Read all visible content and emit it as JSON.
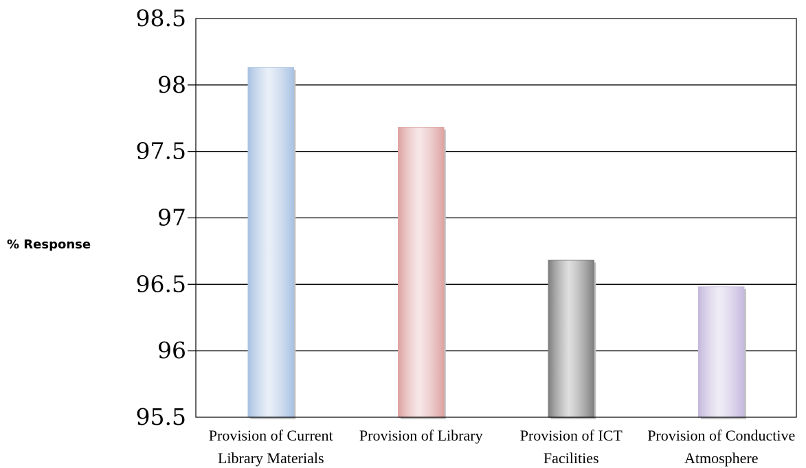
{
  "chart_data": {
    "type": "bar",
    "ylabel": "% Response",
    "ylim": [
      95.5,
      98.5
    ],
    "yticks": [
      "98.5",
      "98",
      "97.5",
      "97",
      "96.5",
      "96",
      "95.5"
    ],
    "ytick_values": [
      98.5,
      98,
      97.5,
      97,
      96.5,
      96,
      95.5
    ],
    "categories": [
      [
        "Provision of Current",
        "Library Materials"
      ],
      [
        "Provision of Library",
        ""
      ],
      [
        "Provision of ICT",
        "Facilities"
      ],
      [
        "Provision of Conductive",
        "Atmosphere"
      ]
    ],
    "values": [
      98.13,
      97.68,
      96.68,
      96.48
    ],
    "colors": [
      "#a9c2e2",
      "#dea3a3",
      "#7f7f7f",
      "#c5b9dd"
    ],
    "grid": true
  }
}
